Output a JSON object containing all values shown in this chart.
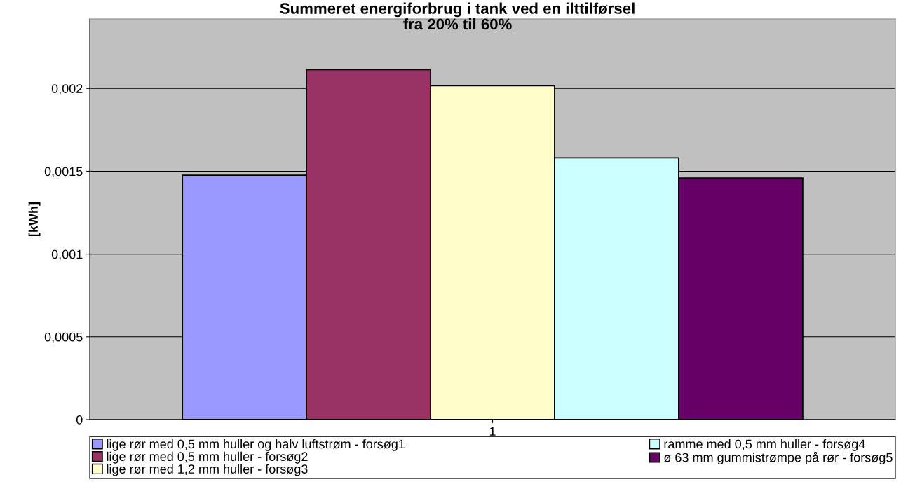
{
  "chart_data": {
    "type": "bar",
    "title": "Summeret energiforbrug i tank ved en ilttilførsel\nfra 20% til 60%",
    "ylabel": "[kWh]",
    "categories": [
      "1"
    ],
    "series": [
      {
        "name": "lige rør med 0,5 mm huller og halv luftstrøm - forsøg1",
        "color": "#9999ff",
        "values": [
          0.001476
        ]
      },
      {
        "name": "lige rør med 0,5 mm huller - forsøg2",
        "color": "#993366",
        "values": [
          0.002114
        ]
      },
      {
        "name": "lige rør med 1,2 mm huller - forsøg3",
        "color": "#ffffcc",
        "values": [
          0.002017
        ]
      },
      {
        "name": "ramme med 0,5 mm huller - forsøg4",
        "color": "#ccffff",
        "values": [
          0.001581
        ]
      },
      {
        "name": "ø 63 mm gummistrømpe på rør - forsøg5",
        "color": "#660066",
        "values": [
          0.001459
        ]
      }
    ],
    "ylim": [
      0,
      0.00242
    ],
    "yticks": [
      {
        "value": 0,
        "label": "0"
      },
      {
        "value": 0.0005,
        "label": "0,0005"
      },
      {
        "value": 0.001,
        "label": "0,001"
      },
      {
        "value": 0.0015,
        "label": "0,0015"
      },
      {
        "value": 0.002,
        "label": "0,002"
      }
    ],
    "grid": "y",
    "legend": "bottom"
  }
}
